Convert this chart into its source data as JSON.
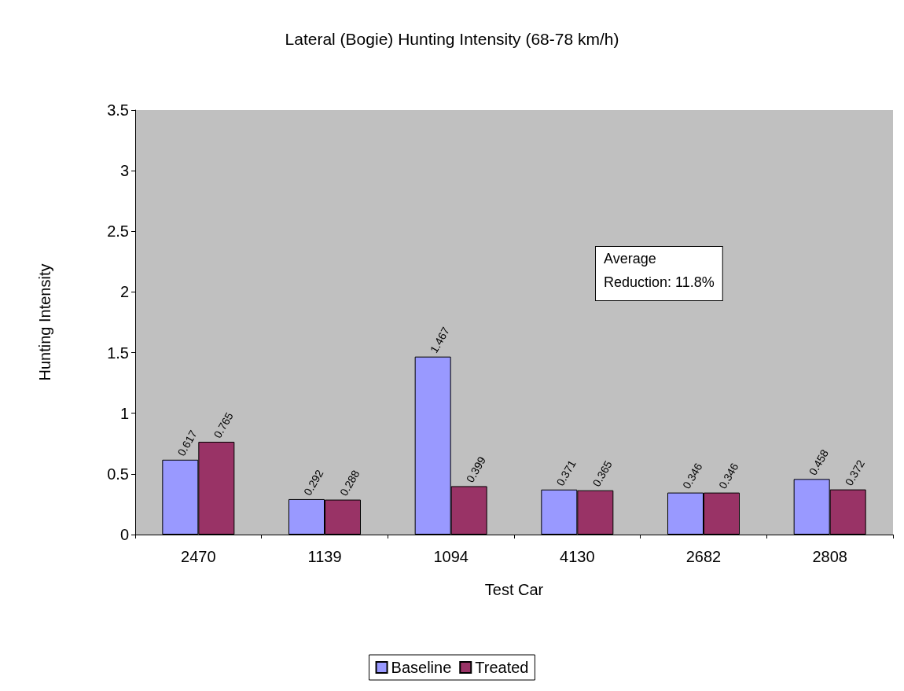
{
  "chart_data": {
    "type": "bar",
    "title": "Lateral (Bogie) Hunting Intensity (68-78 km/h)",
    "xlabel": "Test Car",
    "ylabel": "Hunting Intensity",
    "categories": [
      "2470",
      "1139",
      "1094",
      "4130",
      "2682",
      "2808"
    ],
    "series": [
      {
        "name": "Baseline",
        "color": "#9999ff",
        "values": [
          0.617,
          0.292,
          1.467,
          0.371,
          0.346,
          0.458
        ]
      },
      {
        "name": "Treated",
        "color": "#993366",
        "values": [
          0.765,
          0.288,
          0.399,
          0.365,
          0.346,
          0.372
        ]
      }
    ],
    "ylim": [
      0,
      3.5
    ],
    "yticks": [
      0,
      0.5,
      1,
      1.5,
      2,
      2.5,
      3,
      3.5
    ],
    "grid": false,
    "legend": "bottom",
    "data_labels": true,
    "annotations": [
      "Average\nReduction: 11.8%"
    ]
  }
}
